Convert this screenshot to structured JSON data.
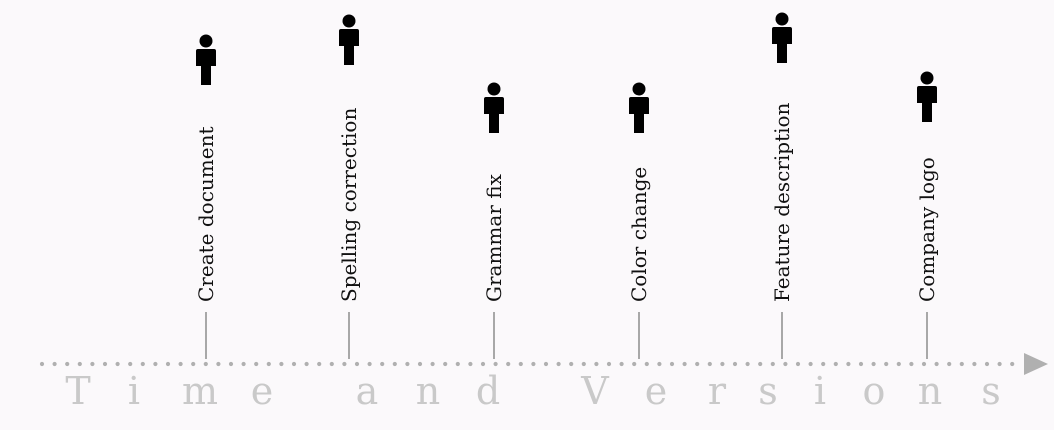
{
  "colors": {
    "background": "#fbf9fb",
    "stem": "#a8a8a8",
    "axis_dots": "#b0b0b0",
    "caption": "#c9c9c9",
    "icon": "#000000",
    "label": "#111111"
  },
  "timeline": {
    "caption": "Time and Versions",
    "caption_letters": [
      "T",
      "i",
      "m",
      "e",
      "a",
      "n",
      "d",
      "V",
      "e",
      "r",
      "s",
      "i",
      "o",
      "n",
      "s"
    ],
    "arrow_icon": "arrow-right-icon",
    "events": [
      {
        "label": "Create document",
        "icon": "person-icon"
      },
      {
        "label": "Spelling correction",
        "icon": "person-icon"
      },
      {
        "label": "Grammar fix",
        "icon": "person-icon"
      },
      {
        "label": "Color change",
        "icon": "person-icon"
      },
      {
        "label": "Feature description",
        "icon": "person-icon"
      },
      {
        "label": "Company logo",
        "icon": "person-icon"
      }
    ]
  }
}
